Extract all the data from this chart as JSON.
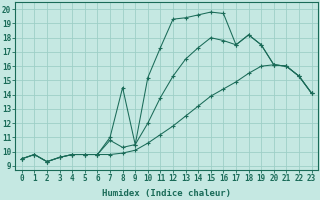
{
  "bg_color": "#c5e8e2",
  "grid_color": "#9ecfc7",
  "line_color": "#1a6b58",
  "xlabel": "Humidex (Indice chaleur)",
  "xlim": [
    -0.5,
    23.5
  ],
  "ylim": [
    8.7,
    20.5
  ],
  "xticks": [
    0,
    1,
    2,
    3,
    4,
    5,
    6,
    7,
    8,
    9,
    10,
    11,
    12,
    13,
    14,
    15,
    16,
    17,
    18,
    19,
    20,
    21,
    22,
    23
  ],
  "yticks": [
    9,
    10,
    11,
    12,
    13,
    14,
    15,
    16,
    17,
    18,
    19,
    20
  ],
  "line1_x": [
    0,
    1,
    2,
    3,
    4,
    5,
    6,
    7,
    8,
    9,
    10,
    11,
    12,
    13,
    14,
    15,
    16,
    17,
    18,
    19,
    20,
    21,
    22,
    23
  ],
  "line1_y": [
    9.5,
    9.8,
    9.3,
    9.6,
    9.8,
    9.8,
    9.8,
    11.0,
    14.5,
    10.5,
    15.2,
    17.3,
    19.3,
    19.4,
    19.6,
    19.8,
    19.7,
    17.5,
    18.2,
    17.5,
    16.1,
    16.0,
    15.3,
    14.1
  ],
  "line2_x": [
    0,
    1,
    2,
    3,
    4,
    5,
    6,
    7,
    8,
    9,
    10,
    11,
    12,
    13,
    14,
    15,
    16,
    17,
    18,
    19,
    20,
    21,
    22,
    23
  ],
  "line2_y": [
    9.5,
    9.8,
    9.3,
    9.6,
    9.8,
    9.8,
    9.8,
    10.8,
    10.3,
    10.5,
    12.0,
    13.8,
    15.3,
    16.5,
    17.3,
    18.0,
    17.8,
    17.5,
    18.2,
    17.5,
    16.1,
    16.0,
    15.3,
    14.1
  ],
  "line3_x": [
    0,
    1,
    2,
    3,
    4,
    5,
    6,
    7,
    8,
    9,
    10,
    11,
    12,
    13,
    14,
    15,
    16,
    17,
    18,
    19,
    20,
    21,
    22,
    23
  ],
  "line3_y": [
    9.5,
    9.8,
    9.3,
    9.6,
    9.8,
    9.8,
    9.8,
    9.8,
    9.9,
    10.1,
    10.6,
    11.2,
    11.8,
    12.5,
    13.2,
    13.9,
    14.4,
    14.9,
    15.5,
    16.0,
    16.1,
    16.0,
    15.3,
    14.1
  ]
}
